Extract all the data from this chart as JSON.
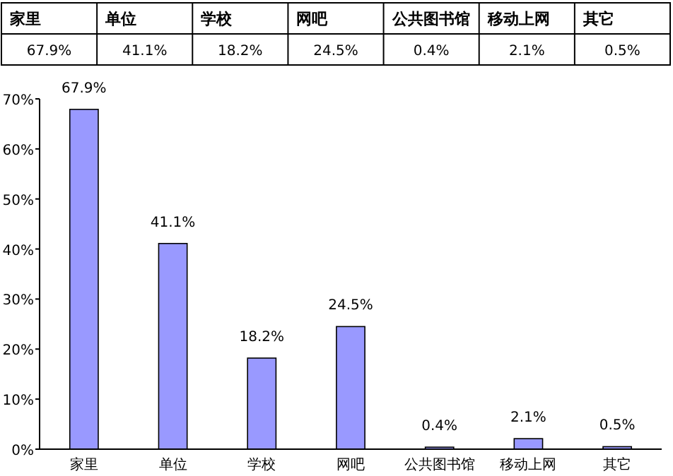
{
  "chart_data": {
    "type": "bar",
    "categories": [
      "家里",
      "单位",
      "学校",
      "网吧",
      "公共图书馆",
      "移动上网",
      "其它"
    ],
    "values": [
      67.9,
      41.1,
      18.2,
      24.5,
      0.4,
      2.1,
      0.5
    ],
    "value_labels": [
      "67.9%",
      "41.1%",
      "18.2%",
      "24.5%",
      "0.4%",
      "2.1%",
      "0.5%"
    ],
    "color": "#9999ff",
    "ylim": [
      0,
      70
    ],
    "yticks": [
      {
        "value": 0,
        "label": "0%"
      },
      {
        "value": 10,
        "label": "10%"
      },
      {
        "value": 20,
        "label": "20%"
      },
      {
        "value": 30,
        "label": "30%"
      },
      {
        "value": 40,
        "label": "40%"
      },
      {
        "value": 50,
        "label": "50%"
      },
      {
        "value": 60,
        "label": "60%"
      },
      {
        "value": 70,
        "label": "70%"
      }
    ]
  }
}
